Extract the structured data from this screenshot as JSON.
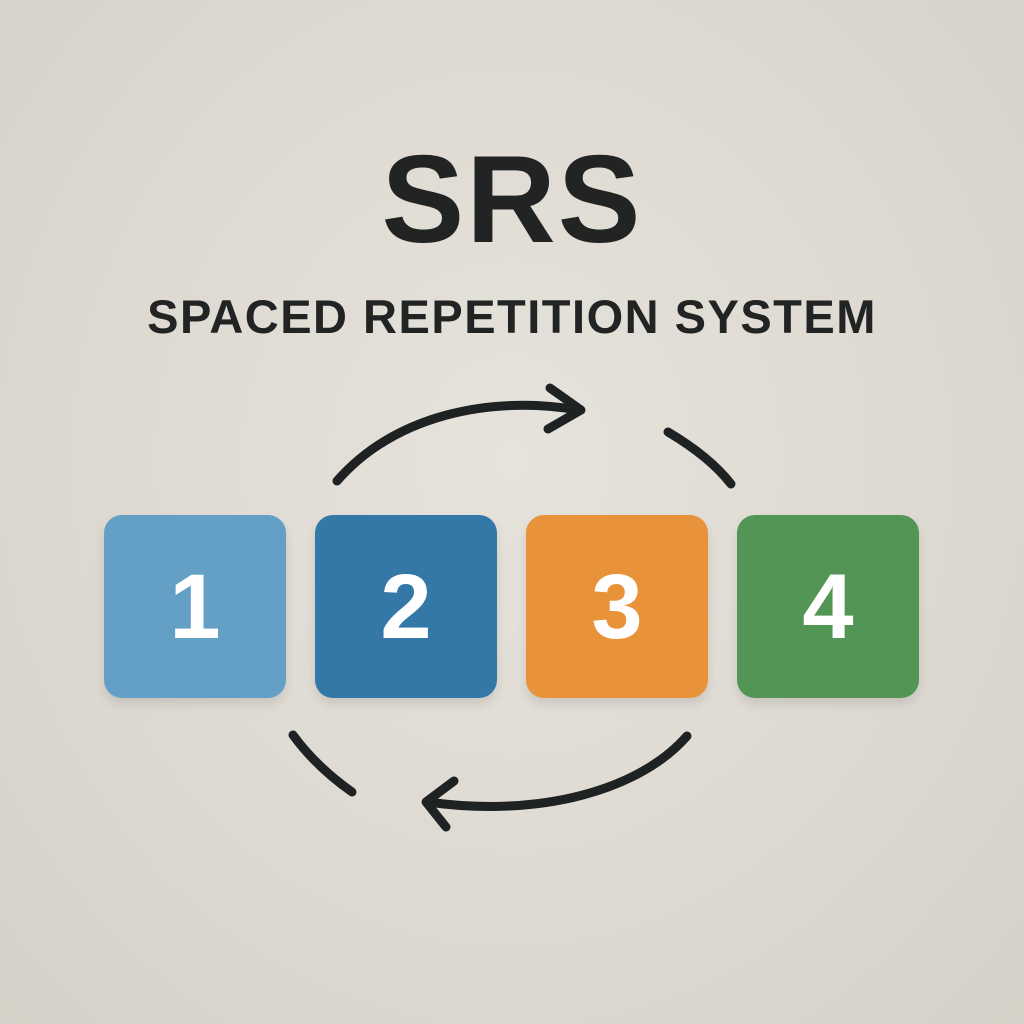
{
  "title": "SRS",
  "subtitle": "SPACED REPETITION SYSTEM",
  "icons": [
    "cycle-arrow-icon"
  ],
  "boxes": [
    {
      "label": "1",
      "color": "#64a0c5"
    },
    {
      "label": "2",
      "color": "#3478a8"
    },
    {
      "label": "3",
      "color": "#e8923a"
    },
    {
      "label": "4",
      "color": "#539555"
    }
  ],
  "colors": {
    "background": "#e0ddd5",
    "text": "#222424",
    "arrows": "#1f2222"
  }
}
